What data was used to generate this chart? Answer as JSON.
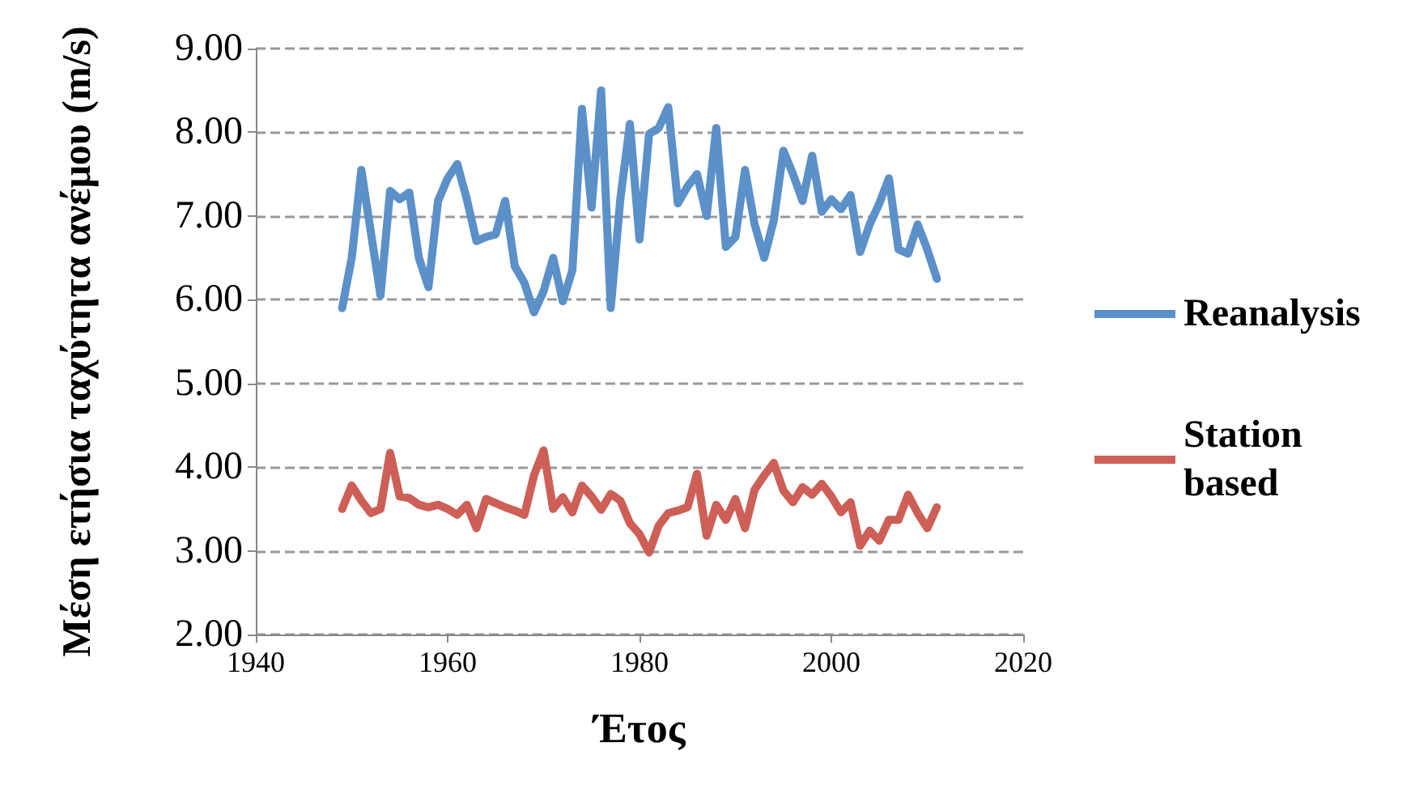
{
  "chart_data": {
    "type": "line",
    "xlabel": "Έτος",
    "ylabel": "Μέση ετήσια ταχύτητα ανέμου (m/s)",
    "x": [
      1949,
      1950,
      1951,
      1952,
      1953,
      1954,
      1955,
      1956,
      1957,
      1958,
      1959,
      1960,
      1961,
      1962,
      1963,
      1964,
      1965,
      1966,
      1967,
      1968,
      1969,
      1970,
      1971,
      1972,
      1973,
      1974,
      1975,
      1976,
      1977,
      1978,
      1979,
      1980,
      1981,
      1982,
      1983,
      1984,
      1985,
      1986,
      1987,
      1988,
      1989,
      1990,
      1991,
      1992,
      1993,
      1994,
      1995,
      1996,
      1997,
      1998,
      1999,
      2000,
      2001,
      2002,
      2003,
      2004,
      2005,
      2006,
      2007,
      2008,
      2009,
      2010,
      2011
    ],
    "series": [
      {
        "name": "Reanalysis",
        "color": "#5b90c9",
        "values": [
          5.9,
          6.5,
          7.55,
          6.8,
          6.05,
          7.3,
          7.2,
          7.28,
          6.5,
          6.15,
          7.18,
          7.45,
          7.62,
          7.2,
          6.7,
          6.75,
          6.78,
          7.18,
          6.4,
          6.2,
          5.85,
          6.1,
          6.5,
          5.98,
          6.35,
          8.28,
          7.1,
          8.5,
          5.9,
          7.2,
          8.1,
          6.72,
          7.98,
          8.05,
          8.3,
          7.15,
          7.35,
          7.5,
          7.0,
          8.05,
          6.63,
          6.75,
          7.55,
          6.9,
          6.5,
          6.95,
          7.78,
          7.5,
          7.18,
          7.72,
          7.05,
          7.2,
          7.08,
          7.25,
          6.57,
          6.9,
          7.15,
          7.45,
          6.6,
          6.55,
          6.9,
          6.6,
          6.25
        ]
      },
      {
        "name": "Station based",
        "color": "#cd5f57",
        "values": [
          3.5,
          3.78,
          3.6,
          3.45,
          3.5,
          4.17,
          3.65,
          3.63,
          3.55,
          3.52,
          3.55,
          3.5,
          3.43,
          3.55,
          3.27,
          3.62,
          3.57,
          3.52,
          3.48,
          3.43,
          3.9,
          4.2,
          3.5,
          3.64,
          3.46,
          3.78,
          3.65,
          3.49,
          3.68,
          3.6,
          3.33,
          3.2,
          2.98,
          3.3,
          3.45,
          3.48,
          3.52,
          3.92,
          3.18,
          3.55,
          3.37,
          3.62,
          3.27,
          3.73,
          3.9,
          4.05,
          3.72,
          3.58,
          3.76,
          3.67,
          3.8,
          3.65,
          3.46,
          3.58,
          3.06,
          3.24,
          3.12,
          3.37,
          3.37,
          3.67,
          3.45,
          3.27,
          3.52
        ]
      }
    ],
    "xlim": [
      1940,
      2020
    ],
    "xticks": [
      1940,
      1960,
      1980,
      2000,
      2020
    ],
    "ylim": [
      2,
      9
    ],
    "yticks": [
      {
        "value": 2,
        "label": "2.00"
      },
      {
        "value": 3,
        "label": "3.00"
      },
      {
        "value": 4,
        "label": "4.00"
      },
      {
        "value": 5,
        "label": "5.00"
      },
      {
        "value": 6,
        "label": "6.00"
      },
      {
        "value": 7,
        "label": "7.00"
      },
      {
        "value": 8,
        "label": "8.00"
      },
      {
        "value": 9,
        "label": "9.00"
      }
    ],
    "grid": "y",
    "legend": "right",
    "marker": "none",
    "line_style": "solid"
  }
}
